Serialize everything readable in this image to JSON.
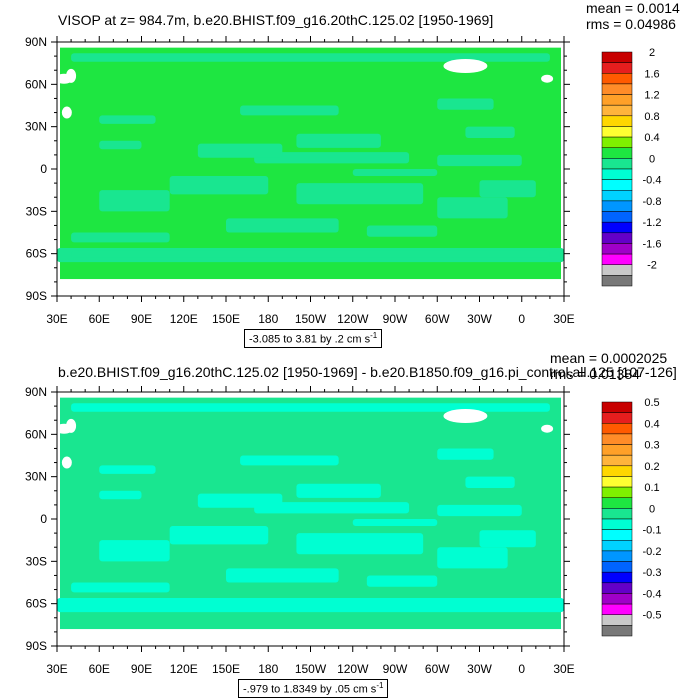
{
  "chart_data": [
    {
      "type": "heatmap",
      "title": "VISOP at z= 984.7m, b.e20.BHIST.f09_g16.20thC.125.02 [1950-1969]",
      "stats": {
        "mean_label": "mean = 0.0014",
        "rms_label": "rms = 0.04986"
      },
      "x_ticks": [
        "30E",
        "60E",
        "90E",
        "120E",
        "150E",
        "180",
        "150W",
        "120W",
        "90W",
        "60W",
        "30W",
        "0",
        "30E"
      ],
      "y_ticks": [
        "90N",
        "60N",
        "30N",
        "0",
        "30S",
        "60S",
        "90S"
      ],
      "xlim_deg_east": [
        30,
        390
      ],
      "ylim_deg_north": [
        -90,
        90
      ],
      "range_text": "-3.085 to 3.81 by .2 cm s",
      "range_unit_exp": "-1",
      "colorbar_levels": [
        "2",
        "1.6",
        "1.2",
        "0.8",
        "0.4",
        "0",
        "-0.4",
        "-0.8",
        "-1.2",
        "-1.6",
        "-2"
      ],
      "colorbar_colors": [
        "#c80000",
        "#e61e1e",
        "#ff5a00",
        "#ff8c28",
        "#ffa028",
        "#ffb43c",
        "#ffd700",
        "#ffff32",
        "#7ff000",
        "#1ee641",
        "#19e690",
        "#00ffd2",
        "#00ffff",
        "#00d2ff",
        "#0096ff",
        "#0064ff",
        "#0000ff",
        "#6400c8",
        "#a000c8",
        "#ff00ff",
        "#c8c8c8",
        "#787878"
      ],
      "field_colors": {
        "ocean_main": "#1ee641",
        "ocean_band": "#19e690",
        "land": "#ffffff"
      }
    },
    {
      "type": "heatmap",
      "title": "b.e20.BHIST.f09_g16.20thC.125.02 [1950-1969] - b.e20.B1850.f09_g16.pi_control.all.125 [107-126]",
      "stats": {
        "mean_label": "mean = 0.0002025",
        "rms_label": "rms = 0.01384"
      },
      "x_ticks": [
        "30E",
        "60E",
        "90E",
        "120E",
        "150E",
        "180",
        "150W",
        "120W",
        "90W",
        "60W",
        "30W",
        "0",
        "30E"
      ],
      "y_ticks": [
        "90N",
        "60N",
        "30N",
        "0",
        "30S",
        "60S",
        "90S"
      ],
      "xlim_deg_east": [
        30,
        390
      ],
      "ylim_deg_north": [
        -90,
        90
      ],
      "range_text": "-.979 to 1.8349 by .05 cm s",
      "range_unit_exp": "-1",
      "colorbar_levels": [
        "0.5",
        "0.4",
        "0.3",
        "0.2",
        "0.1",
        "0",
        "-0.1",
        "-0.2",
        "-0.3",
        "-0.4",
        "-0.5"
      ],
      "colorbar_colors": [
        "#c80000",
        "#e61e1e",
        "#ff5a00",
        "#ff8c28",
        "#ffa028",
        "#ffb43c",
        "#ffd700",
        "#ffff32",
        "#7ff000",
        "#1ee641",
        "#19e690",
        "#00ffd2",
        "#00ffff",
        "#00d2ff",
        "#0096ff",
        "#0064ff",
        "#0000ff",
        "#6400c8",
        "#a000c8",
        "#ff00ff",
        "#c8c8c8",
        "#787878"
      ],
      "field_colors": {
        "ocean_main": "#19e690",
        "ocean_band": "#00ffd2",
        "land": "#ffffff"
      }
    }
  ]
}
